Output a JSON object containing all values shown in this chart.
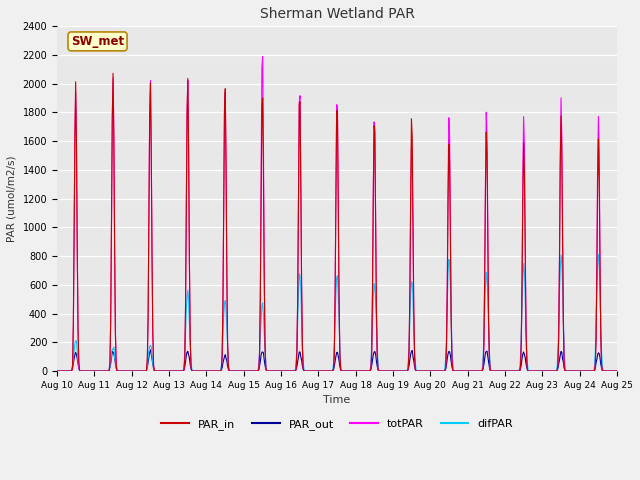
{
  "title": "Sherman Wetland PAR",
  "ylabel": "PAR (umol/m2/s)",
  "xlabel": "Time",
  "annotation": "SW_met",
  "ylim": [
    0,
    2400
  ],
  "yticks": [
    0,
    200,
    400,
    600,
    800,
    1000,
    1200,
    1400,
    1600,
    1800,
    2000,
    2200,
    2400
  ],
  "plot_bg": "#e8e8e8",
  "fig_bg": "#f0f0f0",
  "line_colors": {
    "PAR_in": "#cc0000",
    "PAR_out": "#000099",
    "totPAR": "#ff00ff",
    "difPAR": "#00ccff"
  },
  "x_tick_labels": [
    "Aug 10",
    "Aug 11",
    "Aug 12",
    "Aug 13",
    "Aug 14",
    "Aug 15",
    "Aug 16",
    "Aug 17",
    "Aug 18",
    "Aug 19",
    "Aug 20",
    "Aug 21",
    "Aug 22",
    "Aug 23",
    "Aug 24",
    "Aug 25"
  ],
  "days": 15,
  "ppd": 48,
  "par_in_peaks": [
    1980,
    2060,
    2010,
    2040,
    2000,
    1980,
    1960,
    1890,
    1770,
    1770,
    1610,
    1680,
    1600,
    1780,
    1600
  ],
  "tot_peaks": [
    1950,
    2060,
    2030,
    2040,
    1990,
    2260,
    1990,
    1940,
    1800,
    1600,
    1800,
    1800,
    1800,
    1900,
    1800
  ],
  "par_out_peaks": [
    130,
    140,
    140,
    140,
    110,
    140,
    130,
    130,
    140,
    140,
    140,
    140,
    130,
    130,
    130
  ],
  "dif_peaks": [
    220,
    170,
    190,
    560,
    500,
    480,
    700,
    680,
    620,
    640,
    780,
    690,
    730,
    820,
    820
  ],
  "day_start": 0.35,
  "day_end": 0.65,
  "sharpness": 8.0
}
